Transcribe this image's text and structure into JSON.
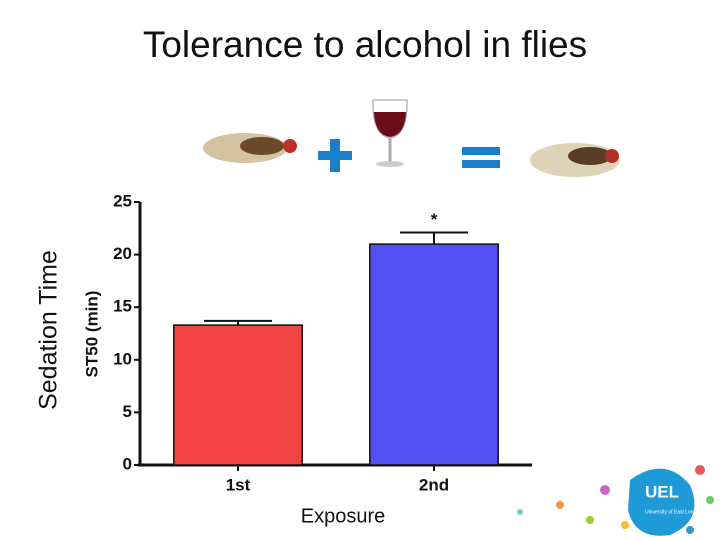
{
  "chart_data": {
    "type": "bar",
    "title": "Tolerance to alcohol in flies",
    "slide_label": "Sedation Time",
    "ylabel": "ST50 (min)",
    "xlabel": "Exposure",
    "categories": [
      "1st",
      "2nd"
    ],
    "values": [
      13.3,
      21.0
    ],
    "errors": [
      0.4,
      1.1
    ],
    "colors": [
      "#f24444",
      "#5050f5"
    ],
    "annotation": "*",
    "ylim": [
      0,
      25
    ],
    "yticks": [
      0,
      5,
      10,
      15,
      20,
      25
    ],
    "logo": {
      "text": "UEL",
      "subtext": "University of East London"
    }
  }
}
